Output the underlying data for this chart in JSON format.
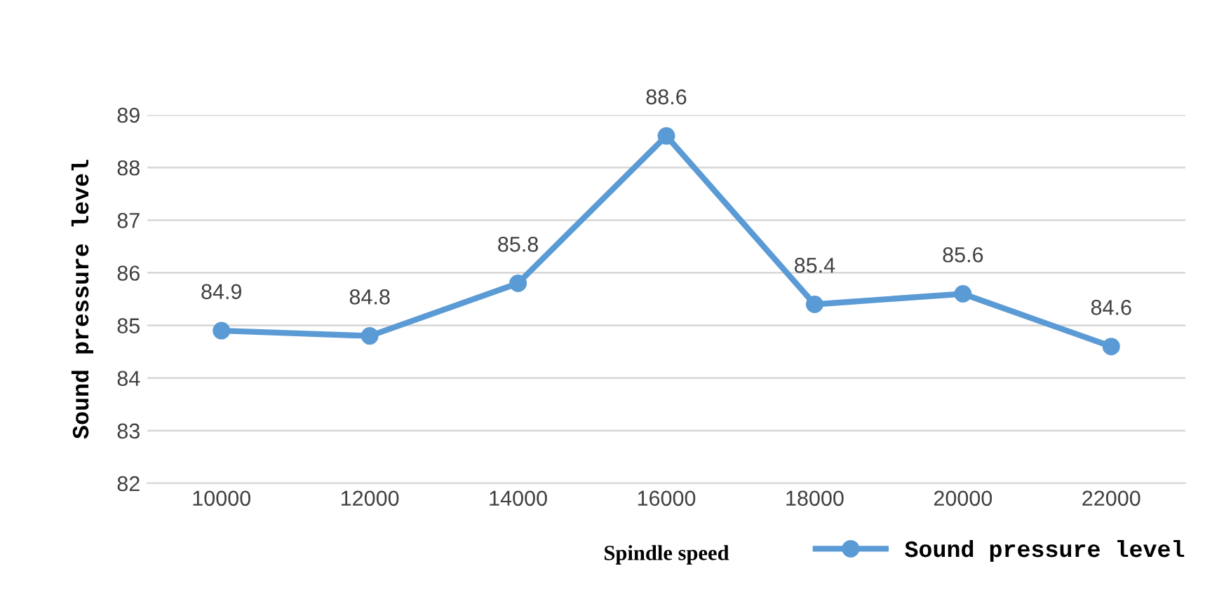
{
  "chart_data": {
    "type": "line",
    "xlabel": "Spindle speed",
    "ylabel": "Sound pressure level",
    "categories": [
      "10000",
      "12000",
      "14000",
      "16000",
      "18000",
      "20000",
      "22000"
    ],
    "series": [
      {
        "name": "Sound pressure level",
        "color": "#5b9bd5",
        "values": [
          84.9,
          84.8,
          85.8,
          88.6,
          85.4,
          85.6,
          84.6
        ]
      }
    ],
    "ylim": [
      82,
      89
    ],
    "yticks": [
      82,
      83,
      84,
      85,
      86,
      87,
      88,
      89
    ],
    "grid": "y",
    "legend": "bottom right",
    "marker": "circle",
    "line_style": "solid",
    "data_labels": true
  }
}
